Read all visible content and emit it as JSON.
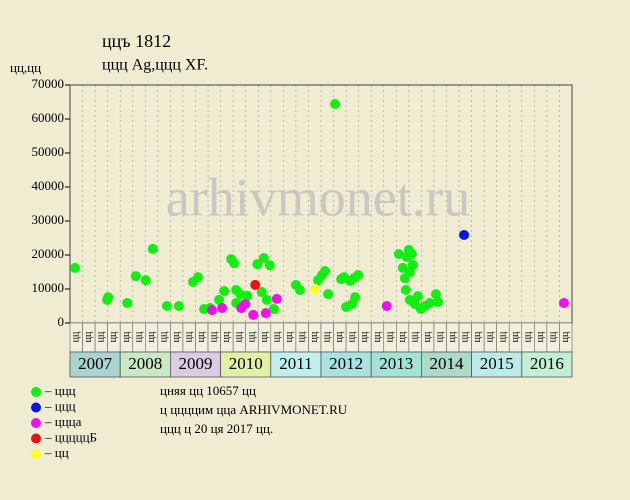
{
  "chart_data": {
    "type": "scatter",
    "title": "ццъ 1812",
    "subtitle": "ццц Ag,ццц XF.",
    "y_label": "цц,цц",
    "watermark": "arhivmonet.ru",
    "xlim": [
      2007,
      2017
    ],
    "ylim": [
      0,
      70000
    ],
    "yticks": [
      0,
      10000,
      20000,
      30000,
      40000,
      50000,
      60000,
      70000
    ],
    "years": [
      "2007",
      "2008",
      "2009",
      "2010",
      "2011",
      "2012",
      "2013",
      "2014",
      "2015",
      "2016"
    ],
    "year_colors": [
      "#a9d4d2",
      "#c9e8c3",
      "#dccbe2",
      "#e2f0a6",
      "#bff0ef",
      "#a9e2e0",
      "#a4e2d4",
      "#acd9c9",
      "#bde9e8",
      "#c2efd4"
    ],
    "quarter_labels": [
      "цц",
      "цц",
      "цц",
      "цц",
      "цц",
      "цц",
      "цц",
      "цц",
      "цц",
      "цц",
      "цц",
      "цц",
      "цц",
      "цц",
      "цц",
      "цц",
      "цц",
      "цц",
      "цц",
      "цц",
      "цц",
      "цц",
      "цц",
      "цц",
      "цц",
      "цц",
      "цц",
      "цц",
      "цц",
      "цц",
      "цц",
      "цц",
      "цц",
      "цц",
      "цц",
      "цц",
      "цц",
      "цц",
      "цц",
      "цц"
    ],
    "series": [
      {
        "name": "– ццц",
        "color": "#11ee11",
        "x": [
          2007.1,
          2007.74,
          2007.76,
          2008.14,
          2008.31,
          2008.51,
          2008.65,
          2008.93,
          2009.17,
          2009.45,
          2009.55,
          2009.67,
          2009.79,
          2009.97,
          2010.07,
          2010.21,
          2010.27,
          2010.31,
          2010.31,
          2010.39,
          2010.53,
          2010.73,
          2010.82,
          2010.86,
          2010.92,
          2010.98,
          2011.06,
          2011.5,
          2011.58,
          2011.94,
          2012.02,
          2012.08,
          2012.14,
          2012.28,
          2012.4,
          2012.46,
          2012.5,
          2012.58,
          2012.62,
          2012.66,
          2012.68,
          2012.74,
          2013.55,
          2013.63,
          2013.67,
          2013.69,
          2013.71,
          2013.75,
          2013.77,
          2013.81,
          2013.83,
          2013.77,
          2013.87,
          2013.93,
          2013.99,
          2014.07,
          2014.17,
          2014.29,
          2014.33
        ],
        "values": [
          16200,
          6800,
          7600,
          5900,
          13800,
          12600,
          21800,
          5000,
          5000,
          12100,
          13500,
          4100,
          4400,
          6800,
          9400,
          18800,
          17600,
          9700,
          5900,
          8500,
          8000,
          17300,
          9100,
          19100,
          6800,
          17000,
          4100,
          11200,
          9700,
          12600,
          14100,
          15300,
          8500,
          64400,
          12900,
          13500,
          4700,
          12400,
          5600,
          13200,
          7600,
          14100,
          20300,
          16200,
          13200,
          9700,
          19400,
          21500,
          6800,
          20300,
          17100,
          15000,
          5600,
          7900,
          4100,
          5000,
          5900,
          8500,
          6200
        ]
      },
      {
        "name": "– ццц",
        "color": "#0a14e6",
        "x": [
          2014.85
        ],
        "values": [
          25900
        ]
      },
      {
        "name": "– ццца",
        "color": "#ee11ee",
        "x": [
          2009.83,
          2010.03,
          2010.41,
          2010.49,
          2010.65,
          2010.9,
          2011.12,
          2013.31,
          2016.84
        ],
        "values": [
          3800,
          4400,
          4400,
          5600,
          2400,
          2900,
          7100,
          5000,
          5900
        ]
      },
      {
        "name": "– цццццБ",
        "color": "#ee1111",
        "x": [
          2010.69
        ],
        "values": [
          11200
        ]
      },
      {
        "name": "– цц",
        "color": "#ffff22",
        "x": [
          2011.88
        ],
        "values": [
          10000
        ]
      }
    ],
    "notes": [
      "цняя цц 10657 цц",
      "ц ццццим цца ARHIVMONET.RU",
      "ццц ц 20 ця 2017 цц."
    ]
  }
}
